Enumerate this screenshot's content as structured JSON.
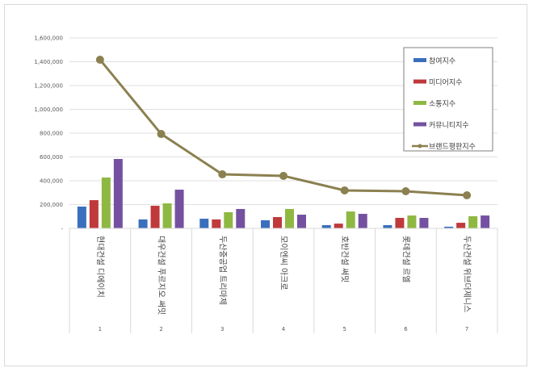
{
  "chart_data": {
    "type": "bar",
    "title": "",
    "xlabel": "",
    "ylabel": "",
    "ylim": [
      0,
      1600000
    ],
    "yticks": [
      "-",
      "200,000",
      "400,000",
      "600,000",
      "800,000",
      "1,000,000",
      "1,200,000",
      "1,400,000",
      "1,600,000"
    ],
    "grid": true,
    "legend_position": "top-right",
    "categories": [
      "1",
      "2",
      "3",
      "4",
      "5",
      "6",
      "7"
    ],
    "category_names": [
      "현대건설 디에이치",
      "대우건설 푸르지오 써밋",
      "두산중공업 트리마제",
      "모이엔씨 아크로",
      "호반건설 써밋",
      "롯데건설 르엘",
      "두산건설 위브더제니스"
    ],
    "series": [
      {
        "name": "참여지수",
        "type": "bar",
        "color": "#3a6fbd",
        "values": [
          183000,
          75000,
          81000,
          68000,
          27000,
          27000,
          14000
        ]
      },
      {
        "name": "미디어지수",
        "type": "bar",
        "color": "#c0393b",
        "values": [
          237000,
          190000,
          75000,
          95000,
          40000,
          88000,
          47000
        ]
      },
      {
        "name": "소통지수",
        "type": "bar",
        "color": "#8fb843",
        "values": [
          427000,
          210000,
          136000,
          163000,
          142000,
          108000,
          102000
        ]
      },
      {
        "name": "커뮤니티지수",
        "type": "bar",
        "color": "#7451a0",
        "values": [
          583000,
          325000,
          163000,
          115000,
          122000,
          88000,
          108000
        ]
      },
      {
        "name": "브랜드평판지수",
        "type": "line",
        "color": "#8b8050",
        "values": [
          1417000,
          793000,
          454000,
          441000,
          319000,
          312000,
          278000
        ]
      }
    ]
  }
}
